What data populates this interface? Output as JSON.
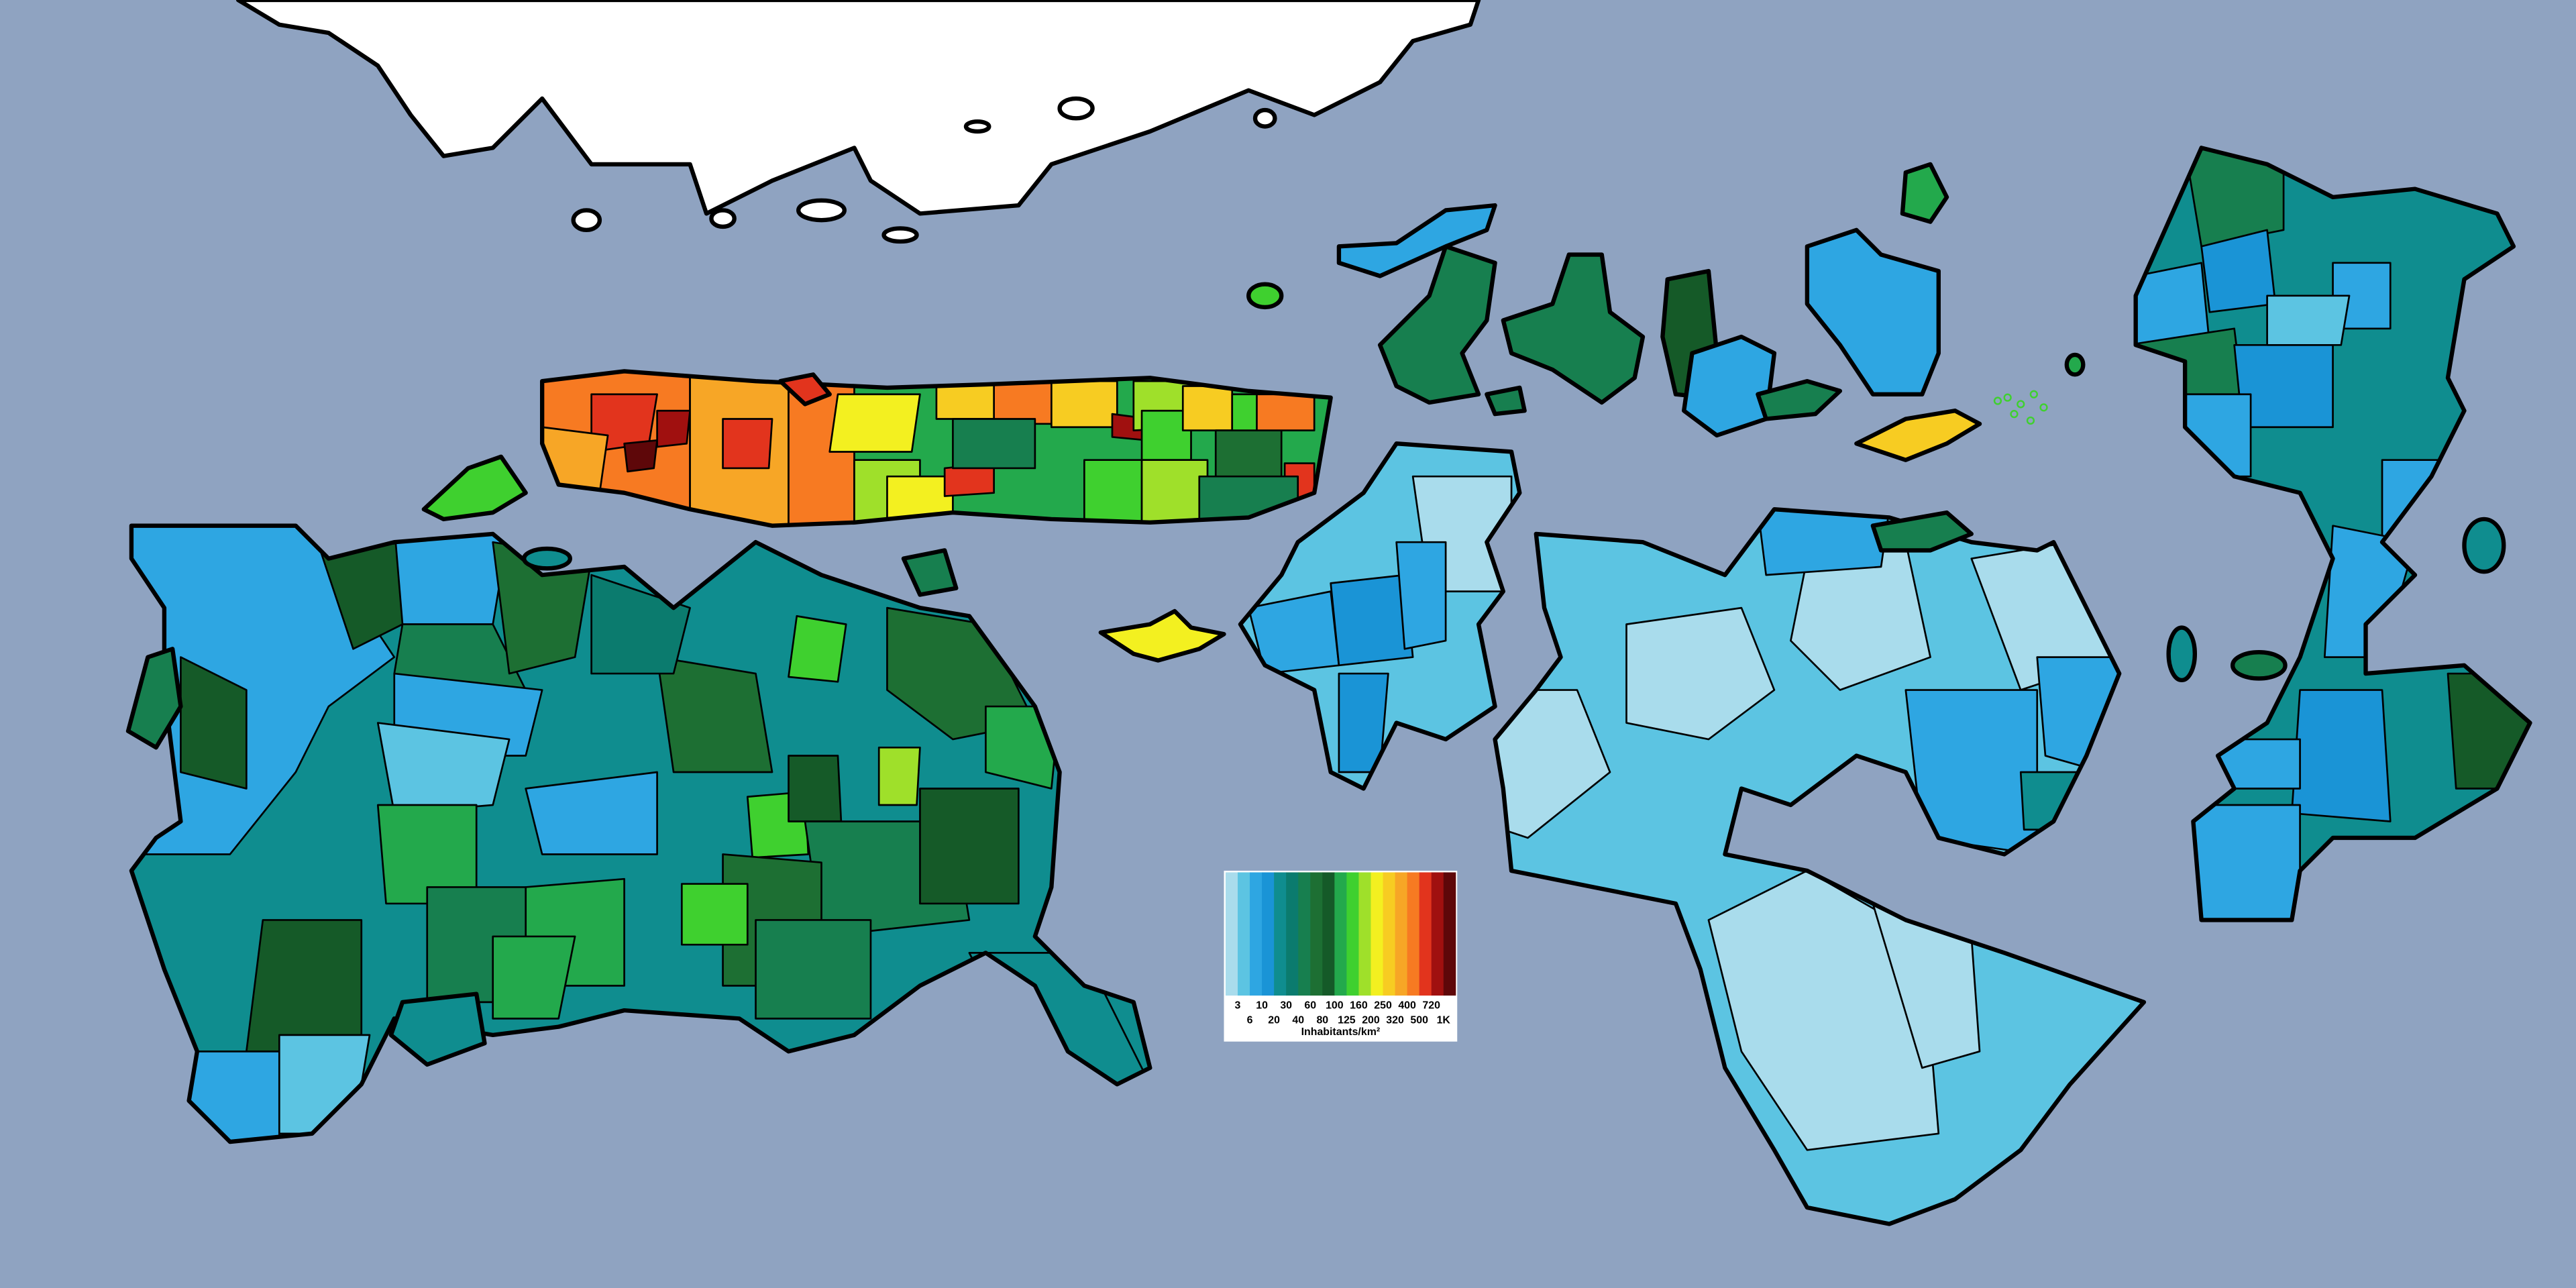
{
  "legend": {
    "title": "Inhabitants/km²",
    "colors": [
      "#a9dcec",
      "#5cc4e2",
      "#2ea6e2",
      "#1a94d6",
      "#0f8d8f",
      "#0b7b6e",
      "#177f4f",
      "#1d6f33",
      "#155a28",
      "#23a94c",
      "#3fd02f",
      "#9fe02a",
      "#f3f020",
      "#f7cc22",
      "#f7a626",
      "#f77a22",
      "#e2341d",
      "#a0100f",
      "#5e0709"
    ],
    "labels": [
      "3",
      "6",
      "10",
      "20",
      "30",
      "40",
      "60",
      "80",
      "100",
      "125",
      "160",
      "200",
      "250",
      "320",
      "400",
      "500",
      "720",
      "1K"
    ]
  }
}
